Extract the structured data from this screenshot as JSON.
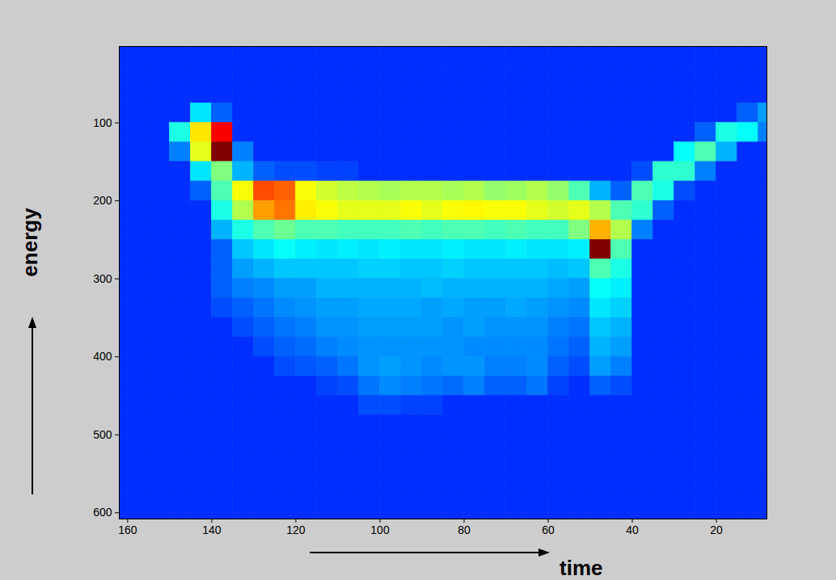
{
  "chart_data": {
    "type": "heatmap",
    "xlabel": "time",
    "ylabel": "energy",
    "xlim": [
      162,
      8
    ],
    "ylim": [
      608,
      2
    ],
    "xticks": [
      160,
      140,
      120,
      100,
      80,
      60,
      40,
      20
    ],
    "yticks": [
      100,
      200,
      300,
      400,
      500,
      600
    ],
    "xbins": [
      162,
      160,
      155,
      150,
      145,
      140,
      135,
      130,
      125,
      120,
      115,
      110,
      105,
      100,
      95,
      90,
      85,
      80,
      75,
      70,
      65,
      60,
      55,
      50,
      45,
      40,
      35,
      30,
      25,
      20,
      15,
      10,
      8
    ],
    "ybins": [
      2,
      25,
      50,
      75,
      100,
      125,
      150,
      175,
      200,
      225,
      250,
      275,
      300,
      325,
      350,
      375,
      400,
      425,
      450,
      475,
      500,
      525,
      550,
      575,
      600,
      608
    ],
    "cells": [
      [
        17,
        17,
        17,
        17,
        17,
        17,
        17,
        17,
        17,
        17,
        17,
        17,
        17,
        17,
        17,
        17,
        17,
        17,
        17,
        17,
        17,
        17,
        17,
        17,
        17,
        17,
        17,
        17,
        17,
        17,
        17,
        17
      ],
      [
        17,
        17,
        17,
        17,
        17,
        17,
        17,
        17,
        17,
        17,
        17,
        17,
        17,
        17,
        17,
        17,
        17,
        17,
        17,
        17,
        17,
        17,
        17,
        17,
        17,
        17,
        17,
        17,
        17,
        17,
        17,
        17
      ],
      [
        17,
        17,
        17,
        17,
        17,
        17,
        17,
        17,
        17,
        17,
        17,
        17,
        17,
        17,
        17,
        17,
        17,
        17,
        17,
        17,
        17,
        17,
        17,
        17,
        17,
        17,
        17,
        17,
        17,
        17,
        17,
        17
      ],
      [
        17,
        17,
        17,
        17,
        35,
        22,
        17,
        17,
        17,
        17,
        17,
        17,
        17,
        17,
        17,
        17,
        17,
        17,
        17,
        17,
        17,
        17,
        17,
        17,
        17,
        17,
        17,
        17,
        17,
        17,
        22,
        28
      ],
      [
        17,
        17,
        17,
        40,
        65,
        88,
        17,
        17,
        17,
        17,
        17,
        17,
        17,
        17,
        17,
        17,
        17,
        17,
        17,
        17,
        17,
        17,
        17,
        17,
        17,
        17,
        17,
        17,
        22,
        40,
        38,
        25
      ],
      [
        17,
        17,
        17,
        25,
        60,
        100,
        25,
        17,
        17,
        17,
        17,
        17,
        17,
        17,
        17,
        17,
        17,
        17,
        17,
        17,
        17,
        17,
        17,
        17,
        17,
        17,
        17,
        38,
        45,
        30,
        17,
        17
      ],
      [
        17,
        17,
        17,
        17,
        35,
        50,
        30,
        22,
        20,
        20,
        19,
        19,
        17,
        17,
        17,
        17,
        17,
        17,
        17,
        17,
        17,
        17,
        17,
        17,
        17,
        20,
        42,
        42,
        25,
        17,
        17,
        17
      ],
      [
        17,
        17,
        17,
        17,
        22,
        45,
        62,
        80,
        78,
        62,
        58,
        56,
        55,
        54,
        55,
        55,
        54,
        55,
        52,
        53,
        55,
        52,
        45,
        30,
        22,
        45,
        40,
        20,
        17,
        17,
        17,
        17
      ],
      [
        17,
        17,
        17,
        17,
        17,
        40,
        55,
        72,
        76,
        64,
        62,
        60,
        60,
        60,
        62,
        60,
        62,
        63,
        62,
        62,
        60,
        58,
        60,
        55,
        45,
        42,
        22,
        17,
        17,
        17,
        17,
        17
      ],
      [
        17,
        17,
        17,
        17,
        17,
        30,
        40,
        45,
        48,
        45,
        45,
        44,
        44,
        44,
        45,
        44,
        45,
        45,
        44,
        45,
        44,
        44,
        50,
        70,
        55,
        25,
        17,
        17,
        17,
        17,
        17,
        17
      ],
      [
        17,
        17,
        17,
        17,
        17,
        22,
        32,
        35,
        38,
        36,
        35,
        36,
        35,
        36,
        35,
        35,
        36,
        35,
        35,
        36,
        35,
        35,
        36,
        100,
        45,
        17,
        17,
        17,
        17,
        17,
        17,
        17
      ],
      [
        17,
        17,
        17,
        17,
        17,
        22,
        28,
        30,
        32,
        32,
        32,
        32,
        33,
        33,
        32,
        32,
        33,
        32,
        32,
        32,
        32,
        31,
        32,
        45,
        40,
        17,
        17,
        17,
        17,
        17,
        17,
        17
      ],
      [
        17,
        17,
        17,
        17,
        17,
        22,
        25,
        26,
        28,
        28,
        30,
        30,
        30,
        30,
        30,
        31,
        30,
        30,
        30,
        30,
        30,
        29,
        28,
        38,
        36,
        17,
        17,
        17,
        17,
        17,
        17,
        17
      ],
      [
        17,
        17,
        17,
        17,
        17,
        20,
        22,
        24,
        26,
        27,
        28,
        28,
        29,
        29,
        29,
        28,
        29,
        28,
        28,
        29,
        28,
        27,
        26,
        35,
        33,
        17,
        17,
        17,
        17,
        17,
        17,
        17
      ],
      [
        17,
        17,
        17,
        17,
        17,
        17,
        20,
        22,
        24,
        25,
        27,
        27,
        28,
        28,
        28,
        28,
        27,
        28,
        27,
        27,
        27,
        25,
        24,
        32,
        30,
        17,
        17,
        17,
        17,
        17,
        17,
        17
      ],
      [
        17,
        17,
        17,
        17,
        17,
        17,
        17,
        20,
        22,
        23,
        25,
        26,
        27,
        27,
        27,
        27,
        27,
        26,
        26,
        26,
        26,
        24,
        22,
        30,
        28,
        17,
        17,
        17,
        17,
        17,
        17,
        17
      ],
      [
        17,
        17,
        17,
        17,
        17,
        17,
        17,
        17,
        20,
        21,
        22,
        24,
        27,
        28,
        27,
        26,
        27,
        27,
        25,
        25,
        26,
        22,
        20,
        28,
        25,
        17,
        17,
        17,
        17,
        17,
        17,
        17
      ],
      [
        17,
        17,
        17,
        17,
        17,
        17,
        17,
        17,
        17,
        17,
        19,
        20,
        24,
        26,
        25,
        24,
        23,
        25,
        22,
        22,
        24,
        19,
        17,
        22,
        20,
        17,
        17,
        17,
        17,
        17,
        17,
        17
      ],
      [
        17,
        17,
        17,
        17,
        17,
        17,
        17,
        17,
        17,
        17,
        17,
        17,
        20,
        20,
        19,
        19,
        17,
        17,
        17,
        17,
        17,
        17,
        17,
        17,
        17,
        17,
        17,
        17,
        17,
        17,
        17,
        17
      ],
      [
        17,
        17,
        17,
        17,
        17,
        17,
        17,
        17,
        17,
        17,
        17,
        17,
        17,
        17,
        17,
        17,
        17,
        17,
        17,
        17,
        17,
        17,
        17,
        17,
        17,
        17,
        17,
        17,
        17,
        17,
        17,
        17
      ],
      [
        17,
        17,
        17,
        17,
        17,
        17,
        17,
        17,
        17,
        17,
        17,
        17,
        17,
        17,
        17,
        17,
        17,
        17,
        17,
        17,
        17,
        17,
        17,
        17,
        17,
        17,
        17,
        17,
        17,
        17,
        17,
        17
      ],
      [
        17,
        17,
        17,
        17,
        17,
        17,
        17,
        17,
        17,
        17,
        17,
        17,
        17,
        17,
        17,
        17,
        17,
        17,
        17,
        17,
        17,
        17,
        17,
        17,
        17,
        17,
        17,
        17,
        17,
        17,
        17,
        17
      ],
      [
        17,
        17,
        17,
        17,
        17,
        17,
        17,
        17,
        17,
        17,
        17,
        17,
        17,
        17,
        17,
        17,
        17,
        17,
        17,
        17,
        17,
        17,
        17,
        17,
        17,
        17,
        17,
        17,
        17,
        17,
        17,
        17
      ],
      [
        17,
        17,
        17,
        17,
        17,
        17,
        17,
        17,
        17,
        17,
        17,
        17,
        17,
        17,
        17,
        17,
        17,
        17,
        17,
        17,
        17,
        17,
        17,
        17,
        17,
        17,
        17,
        17,
        17,
        17,
        17,
        17
      ],
      [
        17,
        17,
        17,
        17,
        17,
        17,
        17,
        17,
        17,
        17,
        17,
        17,
        17,
        17,
        17,
        17,
        17,
        17,
        17,
        17,
        17,
        17,
        17,
        17,
        17,
        17,
        17,
        17,
        17,
        17,
        17,
        17
      ]
    ]
  }
}
